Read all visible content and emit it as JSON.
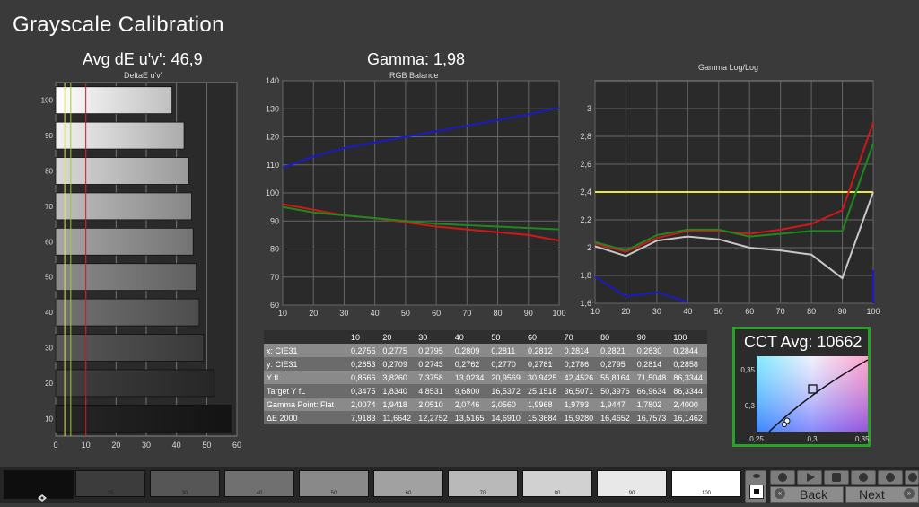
{
  "app": {
    "title": "Grayscale Calibration"
  },
  "colors": {
    "red": "#d01818",
    "green": "#1e8a1e",
    "blue": "#1a1acc",
    "gray": "#c8c8c8",
    "yellow": "#e8e840",
    "accent_green": "#2aa02a"
  },
  "icons": [
    "play-icon",
    "stop-icon",
    "back-icon",
    "next-icon",
    "target-icon"
  ],
  "chart_data": [
    {
      "type": "bar",
      "orientation": "horizontal",
      "header": "Avg dE u'v': 46,9",
      "title": "DeltaE u'v'",
      "categories": [
        "10",
        "20",
        "30",
        "40",
        "50",
        "60",
        "70",
        "80",
        "90",
        "100"
      ],
      "values": [
        58.0,
        52.5,
        49.0,
        47.5,
        46.5,
        45.5,
        45.0,
        44.0,
        42.5,
        38.5
      ],
      "xlim": [
        0,
        60
      ],
      "xticks": [
        "0",
        "10",
        "20",
        "30",
        "40",
        "50",
        "60"
      ],
      "reference_lines": [
        {
          "x": 3,
          "color": "#e8e840"
        },
        {
          "x": 5,
          "color": "#9acd32"
        },
        {
          "x": 10,
          "color": "#d01818"
        }
      ]
    },
    {
      "type": "line",
      "header": "Gamma: 1,98",
      "title": "RGB Balance",
      "x": [
        10,
        20,
        30,
        40,
        50,
        60,
        70,
        80,
        90,
        100
      ],
      "ylim": [
        60,
        140
      ],
      "yticks": [
        "60",
        "70",
        "80",
        "90",
        "100",
        "110",
        "120",
        "130",
        "140"
      ],
      "xticks": [
        "10",
        "20",
        "30",
        "40",
        "50",
        "60",
        "70",
        "80",
        "90",
        "100"
      ],
      "series": [
        {
          "color": "#d01818",
          "values": [
            96,
            94,
            92,
            91,
            89.5,
            88,
            87,
            86,
            85,
            83
          ]
        },
        {
          "color": "#1e8a1e",
          "values": [
            95,
            93,
            92,
            91,
            90,
            89,
            88.5,
            88,
            87.5,
            87
          ]
        },
        {
          "color": "#1a1acc",
          "values": [
            109,
            113,
            116,
            118,
            120,
            122,
            124,
            126,
            128,
            130.5
          ]
        }
      ]
    },
    {
      "type": "line",
      "title": "Gamma Log/Log",
      "x": [
        10,
        20,
        30,
        40,
        50,
        60,
        70,
        80,
        90,
        100
      ],
      "ylim": [
        1.6,
        3.2
      ],
      "yticks": [
        "1,6",
        "1,8",
        "2",
        "2,2",
        "2,4",
        "2,6",
        "2,8",
        "3"
      ],
      "xticks": [
        "10",
        "20",
        "30",
        "40",
        "50",
        "60",
        "70",
        "80",
        "90",
        "100"
      ],
      "target_line": {
        "value": 2.4,
        "color": "#e8e840"
      },
      "series": [
        {
          "color": "#d01818",
          "values": [
            2.03,
            1.97,
            2.07,
            2.12,
            2.12,
            2.1,
            2.13,
            2.17,
            2.27,
            2.9
          ]
        },
        {
          "color": "#1e8a1e",
          "values": [
            2.04,
            1.98,
            2.09,
            2.13,
            2.13,
            2.08,
            2.1,
            2.12,
            2.12,
            2.75
          ]
        },
        {
          "color": "#c8c8c8",
          "values": [
            2.01,
            1.94,
            2.05,
            2.08,
            2.06,
            2.0,
            1.98,
            1.95,
            1.78,
            2.4
          ]
        },
        {
          "color": "#1a1acc",
          "values": [
            1.79,
            1.65,
            1.68,
            1.61,
            null,
            null,
            null,
            null,
            null,
            1.84
          ]
        }
      ]
    }
  ],
  "table": {
    "header": [
      "",
      "10",
      "20",
      "30",
      "40",
      "50",
      "60",
      "70",
      "80",
      "90",
      "100"
    ],
    "rows": [
      [
        "x: CIE31",
        "0,2755",
        "0,2775",
        "0,2795",
        "0,2809",
        "0,2811",
        "0,2812",
        "0,2814",
        "0,2821",
        "0,2830",
        "0,2844"
      ],
      [
        "y: CIE31",
        "0,2653",
        "0,2709",
        "0,2743",
        "0,2762",
        "0,2770",
        "0,2781",
        "0,2786",
        "0,2795",
        "0,2814",
        "0,2858"
      ],
      [
        "Y fL",
        "0,8566",
        "3,8260",
        "7,3758",
        "13,0234",
        "20,9569",
        "30,9425",
        "42,4526",
        "55,8164",
        "71,5048",
        "86,3344"
      ],
      [
        "Target Y fL",
        "0,3475",
        "1,8340",
        "4,8531",
        "9,6800",
        "16,5372",
        "25,1518",
        "36,5071",
        "50,3976",
        "66,9634",
        "86,3344"
      ],
      [
        "Gamma Point: Flat",
        "2,0074",
        "1,9418",
        "2,0510",
        "2,0746",
        "2,0560",
        "1,9968",
        "1,9793",
        "1,9447",
        "1,7802",
        "2,4000"
      ],
      [
        "ΔE 2000",
        "7,9183",
        "11,6642",
        "12,2752",
        "13,5165",
        "14,6910",
        "15,3684",
        "15,9280",
        "16,4652",
        "16,7573",
        "16,1462"
      ]
    ]
  },
  "cct": {
    "label": "CCT Avg: 10662",
    "xticks": [
      "0,25",
      "0,3",
      "0,35"
    ],
    "yticks": [
      "0,35",
      "0,3"
    ]
  },
  "swatches": [
    "20",
    "30",
    "40",
    "50",
    "60",
    "70",
    "80",
    "90",
    "100"
  ],
  "nav": {
    "back": "Back",
    "next": "Next"
  }
}
